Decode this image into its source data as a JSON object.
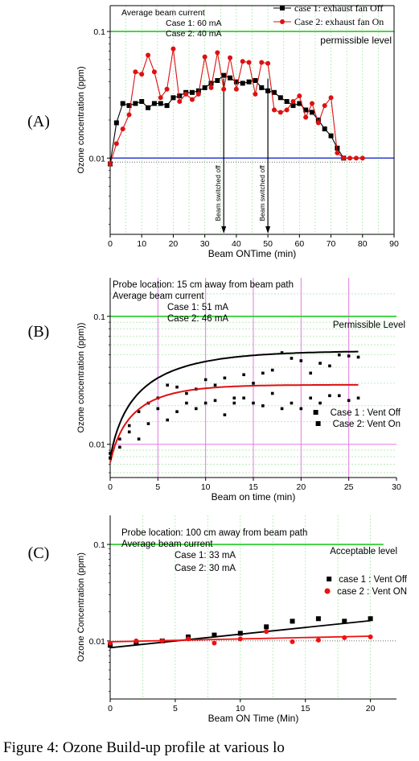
{
  "caption": "Figure 4: Ozone Build-up profile at various lo",
  "chart_data": [
    {
      "panel_label": "(A)",
      "type": "line",
      "log_y": true,
      "xlabel": "Beam ONTime (min)",
      "ylabel": "Ozone concentration (ppm)",
      "xlim": [
        0,
        90
      ],
      "ylim": [
        0.0025,
        0.16
      ],
      "xticks": [
        0,
        10,
        20,
        30,
        40,
        50,
        60,
        70,
        80,
        90
      ],
      "yticks": [
        0.01,
        0.1
      ],
      "grid": true,
      "legend_position": "top-right",
      "annotations": [
        "Average beam current",
        "Case 1: 60 mA",
        "Case 2: 40 mA"
      ],
      "reference_lines": [
        {
          "label": "permissible level",
          "y": 0.1,
          "color": "#22cc22"
        },
        {
          "label": "",
          "y": 0.01,
          "color": "#3344cc"
        }
      ],
      "arrows": [
        {
          "label": "Beam switched off",
          "x": 36
        },
        {
          "label": "Beam switched off",
          "x": 50
        }
      ],
      "series": [
        {
          "name": "case 1: exhaust fan Off",
          "color": "#000000",
          "marker": "square",
          "x": [
            0,
            2,
            4,
            6,
            8,
            10,
            12,
            14,
            16,
            18,
            20,
            22,
            24,
            26,
            28,
            30,
            32,
            34,
            36,
            38,
            40,
            42,
            44,
            46,
            48,
            50,
            52,
            54,
            56,
            58,
            60,
            62,
            64,
            66,
            68,
            70,
            72,
            74
          ],
          "y": [
            0.009,
            0.019,
            0.027,
            0.026,
            0.027,
            0.028,
            0.025,
            0.027,
            0.027,
            0.026,
            0.03,
            0.031,
            0.033,
            0.033,
            0.034,
            0.036,
            0.039,
            0.041,
            0.045,
            0.043,
            0.04,
            0.039,
            0.04,
            0.041,
            0.036,
            0.034,
            0.033,
            0.03,
            0.028,
            0.026,
            0.027,
            0.024,
            0.023,
            0.02,
            0.017,
            0.015,
            0.012,
            0.01
          ]
        },
        {
          "name": "Case 2: exhaust fan On",
          "color": "#dd1111",
          "marker": "circle",
          "x": [
            0,
            2,
            4,
            6,
            8,
            10,
            12,
            14,
            16,
            18,
            20,
            22,
            24,
            26,
            28,
            30,
            32,
            34,
            36,
            38,
            40,
            42,
            44,
            46,
            48,
            50,
            52,
            54,
            56,
            58,
            60,
            62,
            64,
            66,
            68,
            70,
            72,
            74,
            76,
            78,
            80
          ],
          "y": [
            0.009,
            0.013,
            0.017,
            0.022,
            0.048,
            0.046,
            0.065,
            0.048,
            0.03,
            0.035,
            0.073,
            0.028,
            0.032,
            0.029,
            0.032,
            0.063,
            0.036,
            0.068,
            0.035,
            0.062,
            0.035,
            0.058,
            0.057,
            0.032,
            0.057,
            0.056,
            0.024,
            0.023,
            0.024,
            0.028,
            0.031,
            0.021,
            0.027,
            0.019,
            0.026,
            0.03,
            0.011,
            0.01,
            0.01,
            0.01,
            0.01
          ]
        }
      ]
    },
    {
      "panel_label": "(B)",
      "type": "scatter",
      "log_y": true,
      "xlabel": "Beam on time (min)",
      "ylabel": "Ozone concentration (ppm))",
      "xlim": [
        0,
        30
      ],
      "ylim": [
        0.0055,
        0.2
      ],
      "xticks": [
        0,
        5,
        10,
        15,
        20,
        25,
        30
      ],
      "yticks": [
        0.01,
        0.1
      ],
      "grid": true,
      "legend_position": "right",
      "annotations": [
        "Probe location: 15 cm away from beam path",
        "Average beam current",
        "Case 1: 51 mA",
        "Case 2: 46 mA"
      ],
      "reference_lines": [
        {
          "label": "Permissible Level",
          "y": 0.1,
          "color": "#22cc22"
        }
      ],
      "series": [
        {
          "name": "Case 1 : Vent Off",
          "color": "#000000",
          "marker": "square",
          "fit": {
            "a": 0.0078,
            "b": 0.046,
            "tau": 6.3
          },
          "x": [
            0,
            1,
            2,
            3,
            4,
            5,
            6,
            7,
            8,
            9,
            10,
            11,
            12,
            13,
            14,
            15,
            16,
            17,
            18,
            19,
            20,
            21,
            22,
            23,
            24,
            25,
            26
          ],
          "y": [
            0.0085,
            0.011,
            0.014,
            0.018,
            0.021,
            0.023,
            0.029,
            0.028,
            0.025,
            0.027,
            0.032,
            0.029,
            0.033,
            0.023,
            0.035,
            0.03,
            0.036,
            0.038,
            0.052,
            0.047,
            0.045,
            0.036,
            0.043,
            0.041,
            0.05,
            0.049,
            0.048
          ]
        },
        {
          "name": "Case 2: Vent On",
          "color": "#000000",
          "marker": "square",
          "fit": {
            "a": 0.0072,
            "b": 0.022,
            "tau": 4.0
          },
          "x": [
            0,
            1,
            2,
            3,
            4,
            5,
            6,
            7,
            8,
            9,
            10,
            11,
            12,
            13,
            14,
            15,
            16,
            17,
            18,
            19,
            20,
            21,
            22,
            23,
            24,
            25,
            26
          ],
          "y": [
            0.0078,
            0.0095,
            0.0125,
            0.011,
            0.0145,
            0.019,
            0.0155,
            0.018,
            0.021,
            0.019,
            0.021,
            0.022,
            0.017,
            0.021,
            0.023,
            0.021,
            0.02,
            0.025,
            0.019,
            0.021,
            0.019,
            0.023,
            0.021,
            0.024,
            0.024,
            0.022,
            0.023
          ],
          "fit_color": "#dd1111"
        }
      ]
    },
    {
      "panel_label": "(C)",
      "type": "scatter",
      "log_y": true,
      "xlabel": "Beam ON Time (Min)",
      "ylabel": "Ozone Concentration (ppm)",
      "xlim": [
        0,
        22
      ],
      "ylim": [
        0.0025,
        0.2
      ],
      "xticks": [
        0,
        5,
        10,
        15,
        20
      ],
      "yticks": [
        0.01,
        0.1
      ],
      "grid": true,
      "legend_position": "right",
      "annotations": [
        "Probe location: 100 cm away from beam path",
        "Average beam current",
        "Case 1: 33 mA",
        "Case 2: 30 mA"
      ],
      "reference_lines": [
        {
          "label": "Acceptable level",
          "y": 0.1,
          "color": "#22cc22"
        }
      ],
      "series": [
        {
          "name": "case 1 : Vent Off",
          "color": "#000000",
          "marker": "square",
          "fit_line": [
            0.0085,
            0.0162
          ],
          "x": [
            0,
            2,
            4,
            6,
            8,
            10,
            12,
            14,
            16,
            18,
            20
          ],
          "y": [
            0.009,
            0.0095,
            0.01,
            0.011,
            0.0115,
            0.012,
            0.014,
            0.016,
            0.017,
            0.016,
            0.017
          ]
        },
        {
          "name": "case 2 : Vent ON",
          "color": "#ee1111",
          "marker": "circle",
          "fit_line": [
            0.0098,
            0.0112
          ],
          "x": [
            0,
            2,
            4,
            6,
            8,
            10,
            12,
            14,
            16,
            18,
            20
          ],
          "y": [
            0.0095,
            0.01,
            0.01,
            0.0105,
            0.0095,
            0.0105,
            0.0125,
            0.0098,
            0.0102,
            0.0108,
            0.011
          ]
        }
      ]
    }
  ]
}
